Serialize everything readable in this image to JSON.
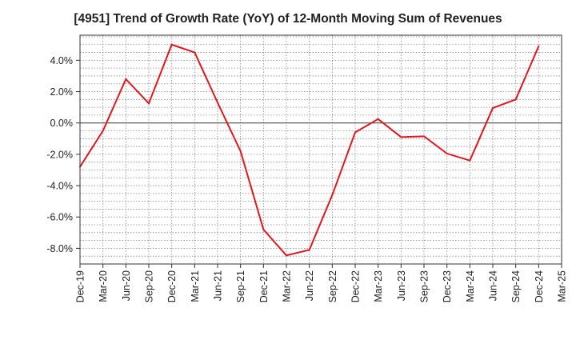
{
  "chart_data": {
    "type": "line",
    "title": "[4951]  Trend of Growth Rate (YoY) of 12-Month Moving Sum of Revenues",
    "xlabel": "",
    "ylabel": "",
    "x_ticks": [
      "Dec-19",
      "Mar-20",
      "Jun-20",
      "Sep-20",
      "Dec-20",
      "Mar-21",
      "Jun-21",
      "Sep-21",
      "Dec-21",
      "Mar-22",
      "Jun-22",
      "Sep-22",
      "Dec-22",
      "Mar-23",
      "Jun-23",
      "Sep-23",
      "Dec-23",
      "Mar-24",
      "Jun-24",
      "Sep-24",
      "Dec-24",
      "Mar-25"
    ],
    "y_ticks": [
      "4.0%",
      "2.0%",
      "0.0%",
      "-2.0%",
      "-4.0%",
      "-6.0%",
      "-8.0%"
    ],
    "y_tick_values": [
      4,
      2,
      0,
      -2,
      -4,
      -6,
      -8
    ],
    "ylim": [
      -9.0,
      5.6
    ],
    "grid": true,
    "series": [
      {
        "color": "#e8141b",
        "x": [
          "Dec-19",
          "Mar-20",
          "Jun-20",
          "Sep-20",
          "Dec-20",
          "Mar-21",
          "Jun-21",
          "Sep-21",
          "Dec-21",
          "Mar-22",
          "Jun-22",
          "Sep-22",
          "Dec-22",
          "Mar-23",
          "Jun-23",
          "Sep-23",
          "Dec-23",
          "Mar-24",
          "Jun-24",
          "Sep-24",
          "Dec-24"
        ],
        "values": [
          -2.8,
          -0.5,
          2.8,
          1.25,
          5.0,
          4.5,
          1.3,
          -1.8,
          -6.8,
          -8.45,
          -8.1,
          -4.6,
          -0.6,
          0.25,
          -0.9,
          -0.85,
          -1.95,
          -2.4,
          0.95,
          1.5,
          4.9
        ]
      }
    ]
  }
}
